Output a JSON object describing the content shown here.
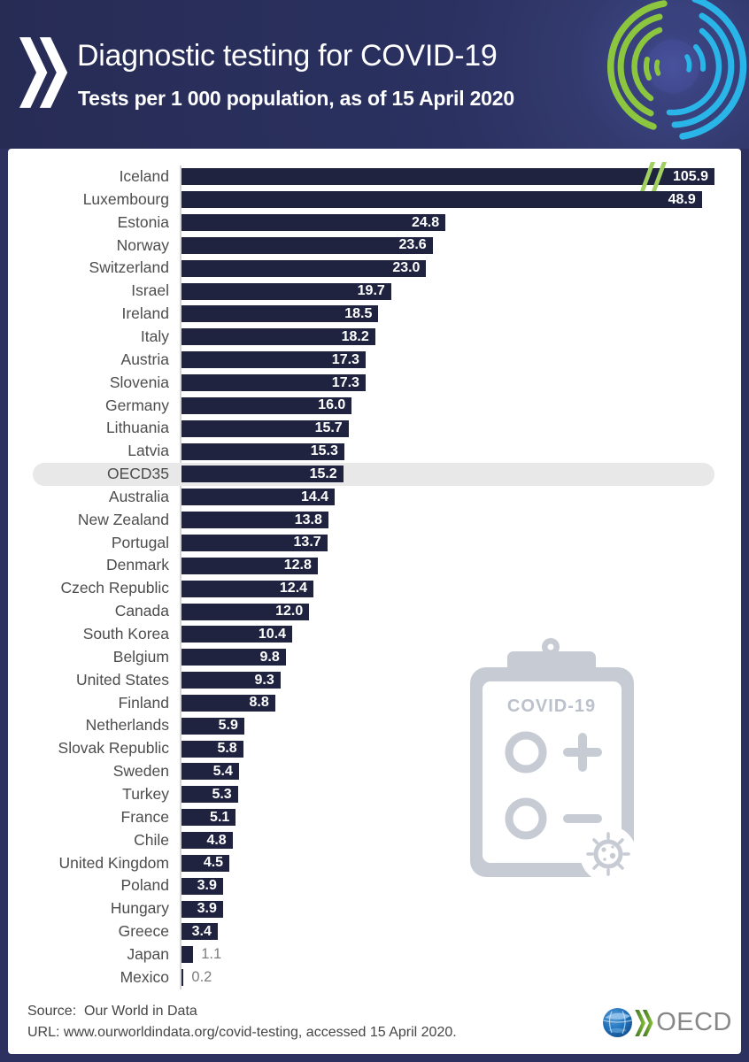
{
  "header": {
    "title": "Diagnostic testing for COVID-19",
    "subtitle": "Tests per 1 000 population, as of 15 April 2020"
  },
  "chart_data": {
    "type": "bar",
    "orientation": "horizontal",
    "title": "Diagnostic testing for COVID-19",
    "xlabel": "Tests per 1 000 population",
    "xlim": [
      0,
      50
    ],
    "value_label_format": "one-decimal",
    "rows": [
      {
        "label": "Iceland",
        "value": 105.9,
        "truncated": true
      },
      {
        "label": "Luxembourg",
        "value": 48.9
      },
      {
        "label": "Estonia",
        "value": 24.8
      },
      {
        "label": "Norway",
        "value": 23.6
      },
      {
        "label": "Switzerland",
        "value": 23.0
      },
      {
        "label": "Israel",
        "value": 19.7
      },
      {
        "label": "Ireland",
        "value": 18.5
      },
      {
        "label": "Italy",
        "value": 18.2
      },
      {
        "label": "Austria",
        "value": 17.3
      },
      {
        "label": "Slovenia",
        "value": 17.3
      },
      {
        "label": "Germany",
        "value": 16.0
      },
      {
        "label": "Lithuania",
        "value": 15.7
      },
      {
        "label": "Latvia",
        "value": 15.3
      },
      {
        "label": "OECD35",
        "value": 15.2,
        "highlight": true
      },
      {
        "label": "Australia",
        "value": 14.4
      },
      {
        "label": "New Zealand",
        "value": 13.8
      },
      {
        "label": "Portugal",
        "value": 13.7
      },
      {
        "label": "Denmark",
        "value": 12.8
      },
      {
        "label": "Czech Republic",
        "value": 12.4
      },
      {
        "label": "Canada",
        "value": 12.0
      },
      {
        "label": "South Korea",
        "value": 10.4
      },
      {
        "label": "Belgium",
        "value": 9.8
      },
      {
        "label": "United States",
        "value": 9.3
      },
      {
        "label": "Finland",
        "value": 8.8
      },
      {
        "label": "Netherlands",
        "value": 5.9
      },
      {
        "label": "Slovak Republic",
        "value": 5.8
      },
      {
        "label": "Sweden",
        "value": 5.4
      },
      {
        "label": "Turkey",
        "value": 5.3
      },
      {
        "label": "France",
        "value": 5.1
      },
      {
        "label": "Chile",
        "value": 4.8
      },
      {
        "label": "United Kingdom",
        "value": 4.5
      },
      {
        "label": "Poland",
        "value": 3.9
      },
      {
        "label": "Hungary",
        "value": 3.9
      },
      {
        "label": "Greece",
        "value": 3.4
      },
      {
        "label": "Japan",
        "value": 1.1,
        "value_outside": true
      },
      {
        "label": "Mexico",
        "value": 0.2,
        "value_outside": true
      }
    ]
  },
  "illustration": {
    "clipboard_label": "COVID-19"
  },
  "footer": {
    "source_line": "Source:  Our World in Data",
    "url_line": "URL: www.ourworldindata.org/covid-testing, accessed 15 April 2020.",
    "oecd_wordmark": "OECD"
  },
  "colors": {
    "header_bg": "#2c3160",
    "bar": "#1f2340",
    "highlight_band": "#e8e8e8",
    "accent_green": "#8cc63e",
    "break_green": "#a0d060",
    "accent_cyan": "#2ab5e8",
    "label_gray": "#4d4d4d",
    "value_outside_gray": "#7d7d7d",
    "illustration_gray": "#c6cbd4"
  }
}
